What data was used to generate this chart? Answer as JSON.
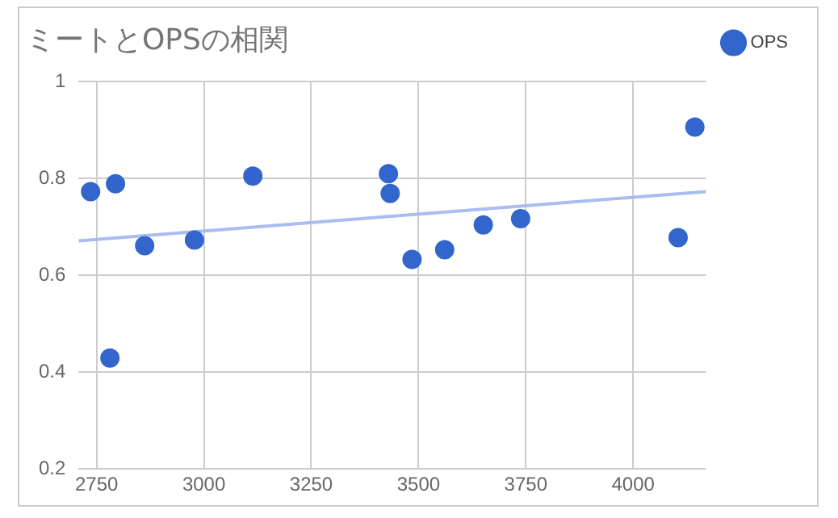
{
  "chart_data": {
    "type": "scatter",
    "title": "ミートとOPSの相関",
    "xlim": [
      2708,
      4170
    ],
    "xticks": [
      2750,
      3000,
      3250,
      3500,
      3750,
      4000
    ],
    "ylim": [
      0.2,
      1
    ],
    "yticks": [
      0.2,
      0.4,
      0.6,
      0.8,
      1
    ],
    "grid": true,
    "legend": "top right",
    "series": [
      {
        "name": "OPS",
        "color": "#3366cc",
        "marker": "circle",
        "x": [
          2736,
          2794,
          2781,
          2862,
          2978,
          3114,
          3430,
          3434,
          3485,
          3561,
          3651,
          3738,
          4105,
          4144
        ],
        "values": [
          0.773,
          0.789,
          0.429,
          0.661,
          0.673,
          0.805,
          0.81,
          0.769,
          0.633,
          0.653,
          0.704,
          0.717,
          0.678,
          0.906
        ]
      },
      {
        "type": "line",
        "color": "#a8bdf0",
        "marker": "none",
        "x": [
          2708,
          4170
        ],
        "values": [
          0.671,
          0.773
        ]
      }
    ]
  }
}
